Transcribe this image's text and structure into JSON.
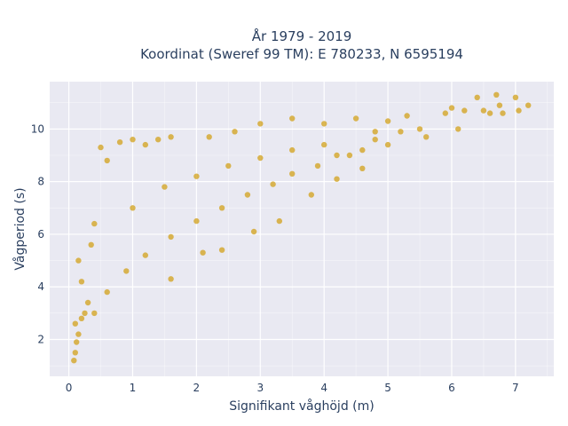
{
  "chart_data": {
    "type": "scatter",
    "title_line1": "År 1979 - 2019",
    "title_line2": "Koordinat (Sweref 99 TM): E 780233, N 6595194",
    "xlabel": "Signifikant våghöjd (m)",
    "ylabel": "Vågperiod (s)",
    "xlim": [
      -0.3,
      7.6
    ],
    "ylim": [
      0.6,
      11.8
    ],
    "x_ticks": [
      0,
      1,
      2,
      3,
      4,
      5,
      6,
      7
    ],
    "y_ticks": [
      2,
      4,
      6,
      8,
      10
    ],
    "grid": true,
    "marker_color": "#d4a423",
    "plot_bgcolor": "#e9e9f2",
    "grid_color": "#ffffff",
    "series": [
      {
        "values": [
          [
            0.08,
            1.2
          ],
          [
            0.1,
            1.5
          ],
          [
            0.12,
            1.9
          ],
          [
            0.15,
            2.2
          ],
          [
            0.1,
            2.6
          ],
          [
            0.2,
            2.8
          ],
          [
            0.25,
            3.0
          ],
          [
            0.3,
            3.4
          ],
          [
            0.2,
            4.2
          ],
          [
            0.15,
            5.0
          ],
          [
            0.35,
            5.6
          ],
          [
            0.4,
            6.4
          ],
          [
            0.5,
            9.3
          ],
          [
            0.6,
            8.8
          ],
          [
            0.8,
            9.5
          ],
          [
            1.0,
            9.6
          ],
          [
            1.2,
            9.4
          ],
          [
            1.4,
            9.6
          ],
          [
            1.6,
            9.7
          ],
          [
            2.2,
            9.7
          ],
          [
            2.6,
            9.9
          ],
          [
            3.0,
            10.2
          ],
          [
            3.5,
            10.4
          ],
          [
            4.0,
            10.2
          ],
          [
            4.5,
            10.4
          ],
          [
            4.8,
            9.9
          ],
          [
            5.0,
            10.3
          ],
          [
            5.3,
            10.5
          ],
          [
            5.5,
            10.0
          ],
          [
            5.6,
            9.7
          ],
          [
            5.0,
            9.4
          ],
          [
            4.6,
            9.2
          ],
          [
            4.2,
            9.0
          ],
          [
            3.9,
            8.6
          ],
          [
            3.5,
            8.3
          ],
          [
            3.2,
            7.9
          ],
          [
            2.8,
            7.5
          ],
          [
            2.4,
            7.0
          ],
          [
            2.0,
            6.5
          ],
          [
            1.6,
            5.9
          ],
          [
            1.2,
            5.2
          ],
          [
            0.9,
            4.6
          ],
          [
            0.6,
            3.8
          ],
          [
            0.4,
            3.0
          ],
          [
            1.0,
            7.0
          ],
          [
            1.5,
            7.8
          ],
          [
            2.0,
            8.2
          ],
          [
            2.5,
            8.6
          ],
          [
            3.0,
            8.9
          ],
          [
            3.5,
            9.2
          ],
          [
            4.0,
            9.4
          ],
          [
            4.4,
            9.0
          ],
          [
            4.8,
            9.6
          ],
          [
            5.2,
            9.9
          ],
          [
            5.9,
            10.6
          ],
          [
            6.0,
            10.8
          ],
          [
            6.1,
            10.0
          ],
          [
            6.2,
            10.7
          ],
          [
            6.4,
            11.2
          ],
          [
            6.5,
            10.7
          ],
          [
            6.6,
            10.6
          ],
          [
            6.7,
            11.3
          ],
          [
            6.75,
            10.9
          ],
          [
            6.8,
            10.6
          ],
          [
            7.0,
            11.2
          ],
          [
            7.05,
            10.7
          ],
          [
            7.2,
            10.9
          ],
          [
            3.3,
            6.5
          ],
          [
            2.4,
            5.4
          ],
          [
            1.6,
            4.3
          ],
          [
            2.1,
            5.3
          ],
          [
            2.9,
            6.1
          ],
          [
            3.8,
            7.5
          ],
          [
            4.2,
            8.1
          ],
          [
            4.6,
            8.5
          ]
        ]
      }
    ]
  }
}
